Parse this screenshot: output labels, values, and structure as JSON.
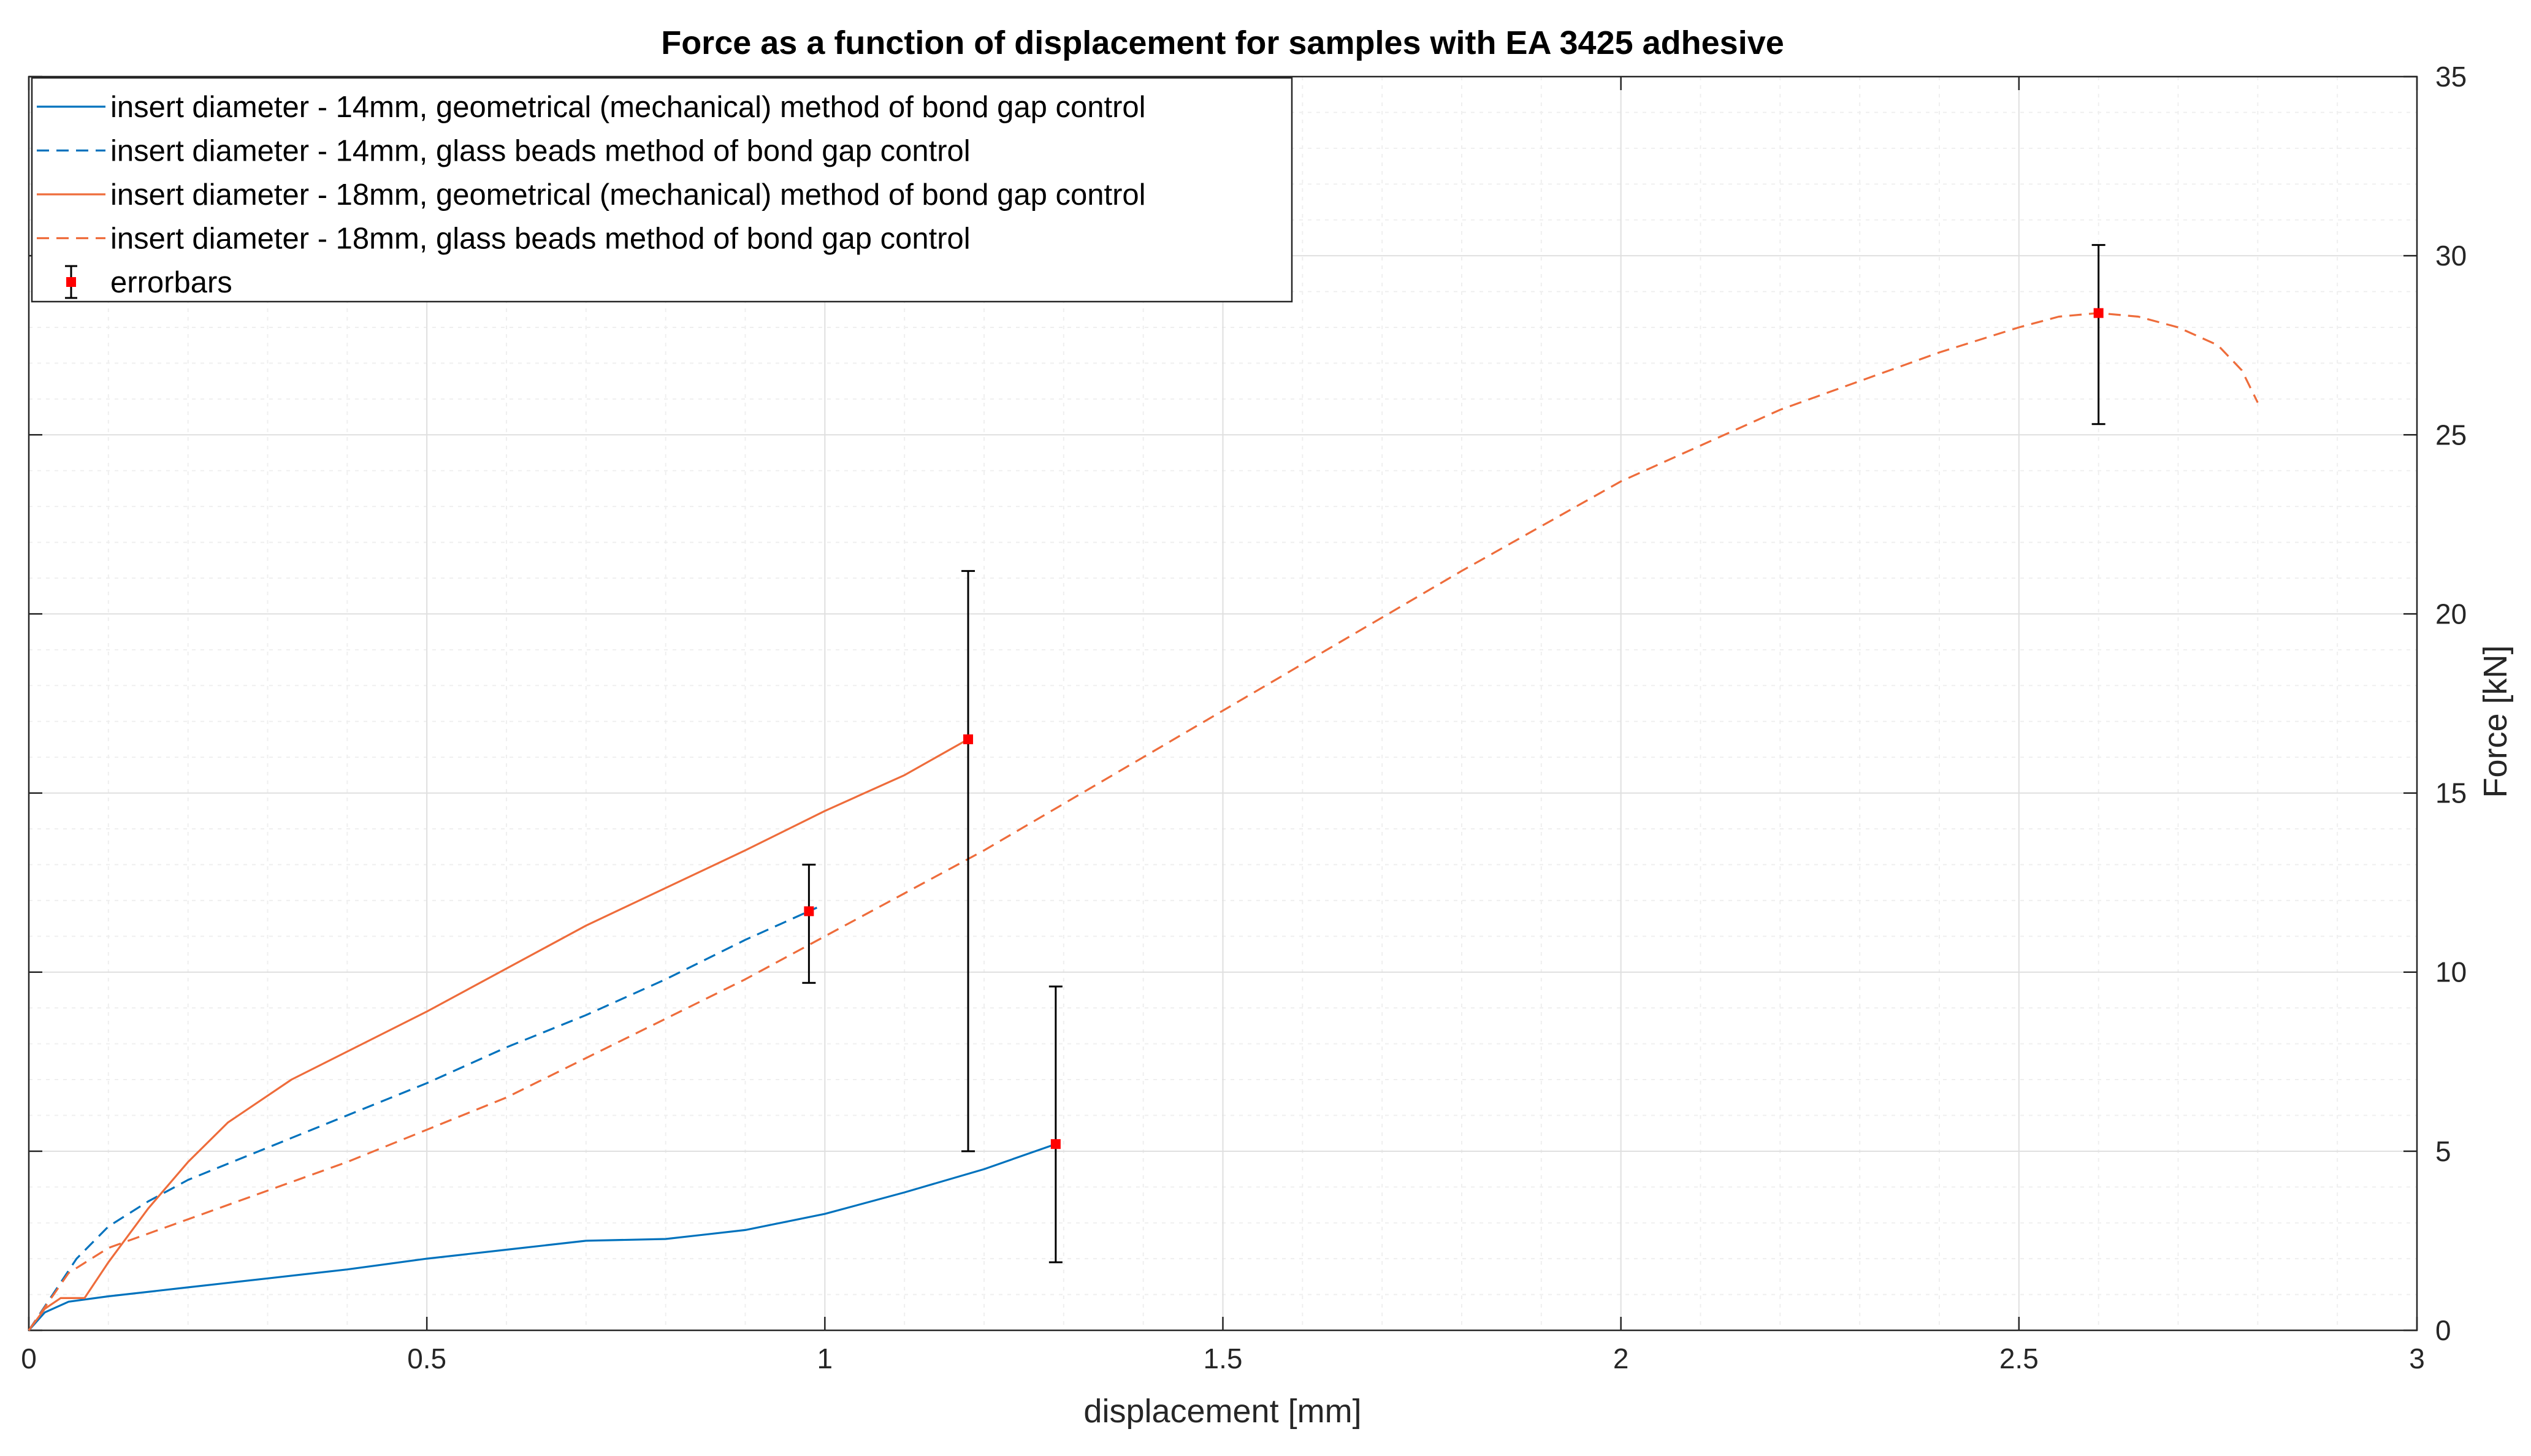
{
  "chart_data": {
    "type": "line",
    "title": "Force as a function of displacement for samples with EA 3425 adhesive",
    "xlabel": "displacement [mm]",
    "ylabel": "Force [kN]",
    "xlim": [
      0,
      3
    ],
    "ylim": [
      0,
      35
    ],
    "x_ticks": [
      0,
      0.5,
      1,
      1.5,
      2,
      2.5,
      3
    ],
    "x_tick_labels": [
      "0",
      "0.5",
      "1",
      "1.5",
      "2",
      "2.5",
      "3"
    ],
    "y_ticks": [
      0,
      5,
      10,
      15,
      20,
      25,
      30,
      35
    ],
    "y_tick_labels": [
      "0",
      "5",
      "10",
      "15",
      "20",
      "25",
      "30",
      "35"
    ],
    "y_axis_side": "right",
    "grid": true,
    "minor_grid": true,
    "legend_position": "top-left",
    "series": [
      {
        "name": "insert diameter - 14mm, geometrical (mechanical) method of bond gap control",
        "color": "#0072BD",
        "style": "solid",
        "x": [
          0,
          0.02,
          0.05,
          0.1,
          0.2,
          0.3,
          0.4,
          0.5,
          0.6,
          0.7,
          0.8,
          0.9,
          1.0,
          1.1,
          1.2,
          1.29
        ],
        "y": [
          0,
          0.5,
          0.8,
          0.95,
          1.2,
          1.45,
          1.7,
          2.0,
          2.25,
          2.5,
          2.55,
          2.8,
          3.25,
          3.85,
          4.5,
          5.2
        ]
      },
      {
        "name": "insert diameter - 14mm, glass beads method of bond gap control",
        "color": "#0072BD",
        "style": "dashed",
        "x": [
          0,
          0.03,
          0.06,
          0.1,
          0.15,
          0.2,
          0.3,
          0.4,
          0.5,
          0.6,
          0.7,
          0.8,
          0.9,
          0.95,
          0.99
        ],
        "y": [
          0,
          1.0,
          2.0,
          2.9,
          3.6,
          4.2,
          5.1,
          6.0,
          6.9,
          7.9,
          8.8,
          9.8,
          10.9,
          11.4,
          11.8
        ]
      },
      {
        "name": "insert diameter - 18mm, geometrical (mechanical) method of bond gap control",
        "color": "#EE6C3B",
        "style": "solid",
        "x": [
          0,
          0.02,
          0.04,
          0.07,
          0.1,
          0.15,
          0.2,
          0.25,
          0.33,
          0.5,
          0.7,
          0.9,
          1.0,
          1.1,
          1.18
        ],
        "y": [
          0,
          0.6,
          0.9,
          0.9,
          1.9,
          3.4,
          4.7,
          5.8,
          7.0,
          8.9,
          11.3,
          13.4,
          14.5,
          15.5,
          16.5
        ]
      },
      {
        "name": "insert diameter - 18mm, glass beads method of bond gap control",
        "color": "#EE6C3B",
        "style": "dashed",
        "x": [
          0,
          0.05,
          0.1,
          0.2,
          0.3,
          0.4,
          0.5,
          0.6,
          0.7,
          0.8,
          0.9,
          1.0,
          1.2,
          1.4,
          1.6,
          1.8,
          2.0,
          2.2,
          2.4,
          2.5,
          2.55,
          2.6,
          2.65,
          2.7,
          2.75,
          2.78,
          2.8
        ],
        "y": [
          0,
          1.6,
          2.3,
          3.1,
          3.9,
          4.7,
          5.6,
          6.5,
          7.6,
          8.7,
          9.8,
          11.0,
          13.4,
          16.0,
          18.6,
          21.2,
          23.7,
          25.7,
          27.3,
          28.0,
          28.3,
          28.4,
          28.3,
          28.0,
          27.5,
          26.8,
          25.9
        ]
      }
    ],
    "errorbars": {
      "name": "errorbars",
      "marker_color": "#FF0000",
      "bar_color": "#000000",
      "points": [
        {
          "x": 0.98,
          "y": 11.7,
          "low": 9.7,
          "high": 13.0
        },
        {
          "x": 1.18,
          "y": 16.5,
          "low": 5.0,
          "high": 21.2
        },
        {
          "x": 1.29,
          "y": 5.2,
          "low": 1.9,
          "high": 9.6
        },
        {
          "x": 2.6,
          "y": 28.4,
          "low": 25.3,
          "high": 30.3
        }
      ]
    }
  }
}
